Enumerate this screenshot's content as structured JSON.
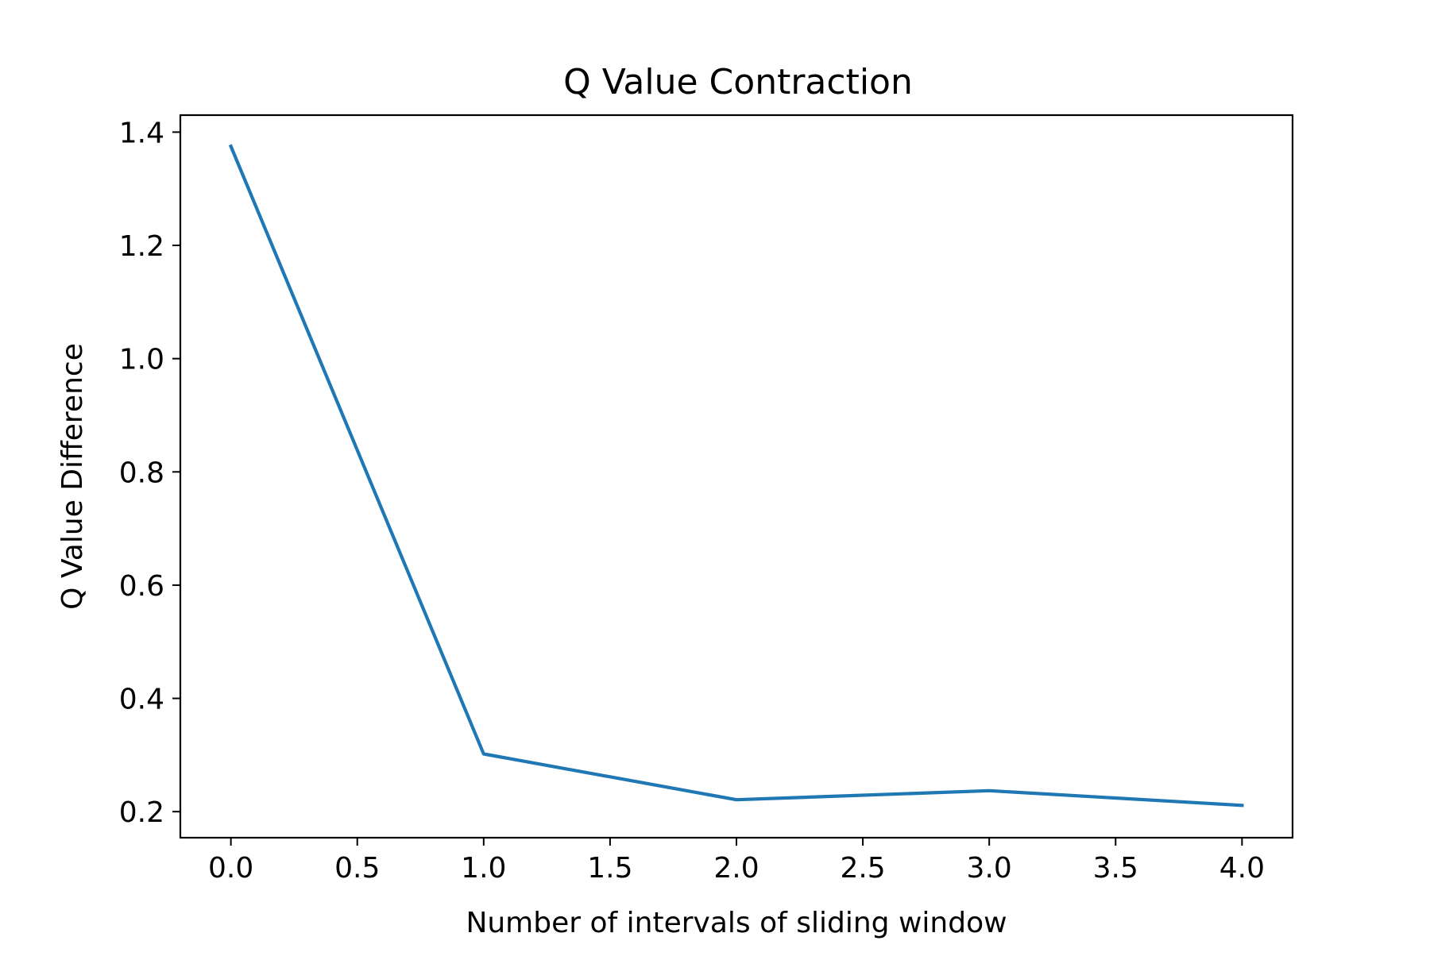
{
  "chart_data": {
    "type": "line",
    "title": "Q Value Contraction",
    "xlabel": "Number of intervals of sliding window",
    "ylabel": "Q Value Difference",
    "x": [
      0,
      1,
      2,
      3,
      4
    ],
    "series": [
      {
        "values": [
          1.375,
          0.302,
          0.221,
          0.237,
          0.211
        ],
        "color": "#1f77b4"
      }
    ],
    "xlim": [
      -0.2,
      4.2
    ],
    "ylim": [
      0.154,
      1.43
    ],
    "xticks": [
      0.0,
      0.5,
      1.0,
      1.5,
      2.0,
      2.5,
      3.0,
      3.5,
      4.0
    ],
    "xtick_labels": [
      "0.0",
      "0.5",
      "1.0",
      "1.5",
      "2.0",
      "2.5",
      "3.0",
      "3.5",
      "4.0"
    ],
    "yticks": [
      0.2,
      0.4,
      0.6,
      0.8,
      1.0,
      1.2,
      1.4
    ],
    "ytick_labels": [
      "0.2",
      "0.4",
      "0.6",
      "0.8",
      "1.0",
      "1.2",
      "1.4"
    ],
    "grid": false,
    "legend": "none"
  }
}
